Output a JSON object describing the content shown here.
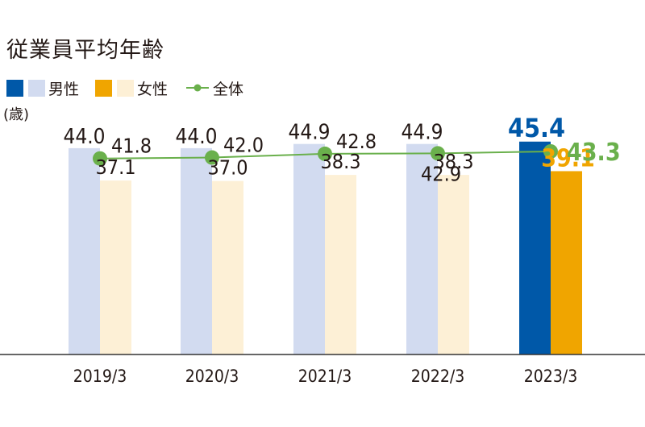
{
  "title": "従業員平均年齢",
  "unit_label": "(歳)",
  "legend": {
    "male": "男性",
    "female": "女性",
    "total": "全体"
  },
  "colors": {
    "male": "#d2dbf0",
    "male_highlight": "#0058a8",
    "female": "#fdf0d6",
    "female_highlight": "#f0a500",
    "total": "#6ab04c",
    "axis": "#333333",
    "text": "#231815"
  },
  "chart_data": {
    "type": "bar",
    "categories": [
      "2019/3",
      "2020/3",
      "2021/3",
      "2022/3",
      "2023/3"
    ],
    "series": [
      {
        "name": "男性",
        "type": "bar",
        "values": [
          44.0,
          44.0,
          44.9,
          44.9,
          45.4
        ]
      },
      {
        "name": "女性",
        "type": "bar",
        "values": [
          37.1,
          37.0,
          38.3,
          38.3,
          39.1
        ]
      },
      {
        "name": "全体",
        "type": "line",
        "values": [
          41.8,
          42.0,
          42.8,
          42.9,
          43.3
        ]
      }
    ],
    "value_labels": {
      "male": [
        "44.0",
        "44.0",
        "44.9",
        "44.9",
        "45.4"
      ],
      "female": [
        "37.1",
        "37.0",
        "38.3",
        "38.3",
        "39.1"
      ],
      "total": [
        "41.8",
        "42.0",
        "42.8",
        "42.9",
        "43.3"
      ]
    },
    "highlight_index": 4,
    "title": "従業員平均年齢",
    "ylabel": "(歳)",
    "ylim": [
      0,
      50
    ],
    "grid": false,
    "legend_position": "top-left"
  }
}
